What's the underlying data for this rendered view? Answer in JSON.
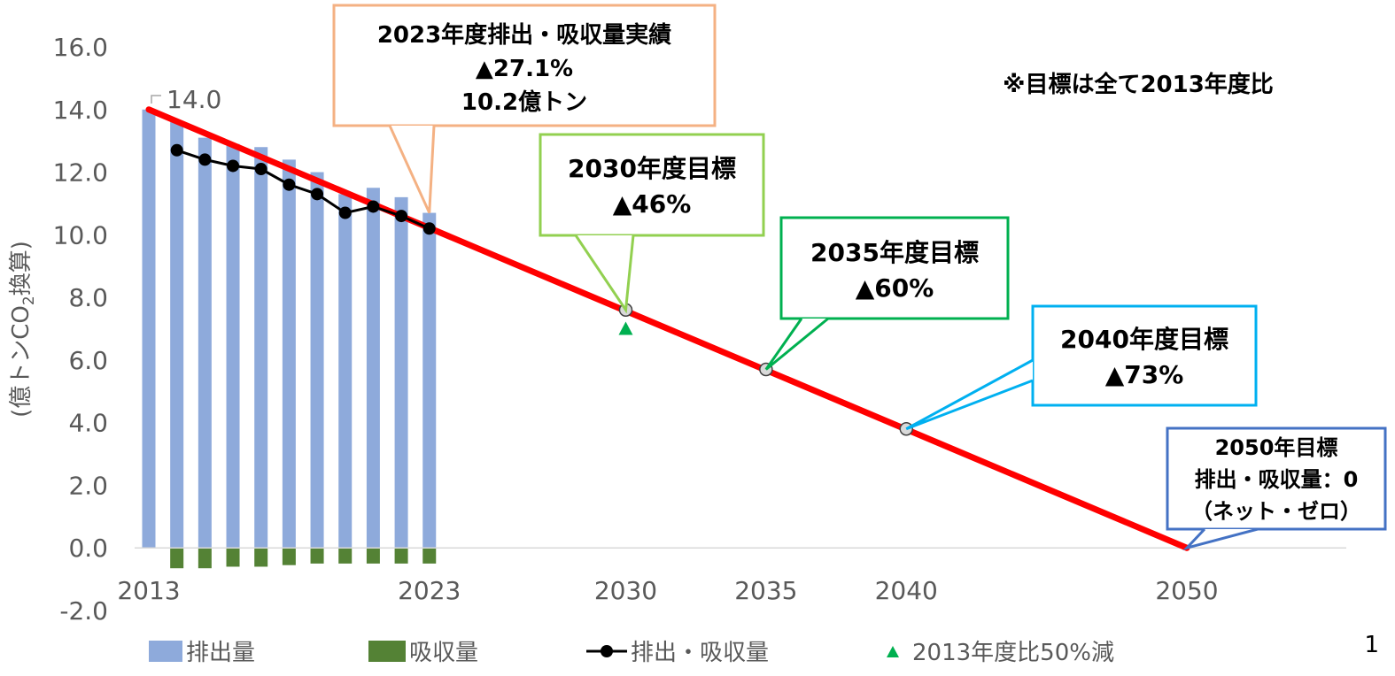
{
  "chart_data": {
    "type": "bar",
    "ylabel": "(億トンCO2換算)",
    "ylabel_parts": [
      "(億トンCO",
      "2",
      "換算)"
    ],
    "ylim": [
      -2.0,
      16.0
    ],
    "yticks": [
      "-2.0",
      "0.0",
      "2.0",
      "4.0",
      "6.0",
      "8.0",
      "10.0",
      "12.0",
      "14.0",
      "16.0"
    ],
    "ytick_values": [
      -2,
      0,
      2,
      4,
      6,
      8,
      10,
      12,
      14,
      16
    ],
    "xlim": [
      2012.4,
      2056.5
    ],
    "xticks": [
      "2013",
      "2023",
      "2030",
      "2035",
      "2040",
      "2050"
    ],
    "xtick_values": [
      2013,
      2023,
      2030,
      2035,
      2040,
      2050
    ],
    "grid": false,
    "legend_position": "bottom",
    "series": [
      {
        "name": "排出量",
        "kind": "bar",
        "color": "#8eaadb",
        "x": [
          2013,
          2014,
          2015,
          2016,
          2017,
          2018,
          2019,
          2020,
          2021,
          2022,
          2023
        ],
        "values": [
          14.0,
          13.6,
          13.1,
          12.9,
          12.8,
          12.4,
          12.0,
          11.3,
          11.5,
          11.2,
          10.7
        ]
      },
      {
        "name": "吸収量",
        "kind": "bar",
        "color": "#548235",
        "x": [
          2014,
          2015,
          2016,
          2017,
          2018,
          2019,
          2020,
          2021,
          2022,
          2023
        ],
        "values": [
          -0.65,
          -0.65,
          -0.6,
          -0.6,
          -0.55,
          -0.5,
          -0.5,
          -0.5,
          -0.5,
          -0.5
        ]
      },
      {
        "name": "排出・吸収量",
        "kind": "line",
        "color": "#000000",
        "x": [
          2014,
          2015,
          2016,
          2017,
          2018,
          2019,
          2020,
          2021,
          2022,
          2023
        ],
        "values": [
          12.7,
          12.4,
          12.2,
          12.1,
          11.6,
          11.3,
          10.7,
          10.9,
          10.6,
          10.2
        ]
      },
      {
        "name": "2013年度比50%減",
        "kind": "marker",
        "color": "#00b050",
        "x": [
          2030
        ],
        "values": [
          7.0
        ]
      },
      {
        "name": "",
        "kind": "target-line",
        "color": "#ff0000",
        "x": [
          2013,
          2050
        ],
        "values": [
          14.0,
          0.0
        ],
        "milestones": [
          {
            "x": 2030,
            "value": 7.6
          },
          {
            "x": 2035,
            "value": 5.7
          },
          {
            "x": 2040,
            "value": 3.8
          }
        ]
      }
    ],
    "annotations": {
      "first_label": "14.0",
      "note": "※目標は全て2013年度比",
      "callouts": [
        {
          "lines": [
            "2023年度排出・吸収量実績",
            "▲27.1%",
            "10.2億トン"
          ],
          "color": "#f4b183"
        },
        {
          "lines": [
            "2030年度目標",
            "▲46%"
          ],
          "color": "#92d050"
        },
        {
          "lines": [
            "2035年度目標",
            "▲60%"
          ],
          "color": "#00b050"
        },
        {
          "lines": [
            "2040年度目標",
            "▲73%"
          ],
          "color": "#00b0f0"
        },
        {
          "lines": [
            "2050年目標",
            "排出・吸収量：0",
            "（ネット・ゼロ）"
          ],
          "color": "#4472c4"
        }
      ]
    }
  },
  "page_number": "1",
  "colors": {
    "tick_text": "#595959",
    "negative_tick": "#ff0000",
    "axis_line": "#d9d9d9"
  }
}
